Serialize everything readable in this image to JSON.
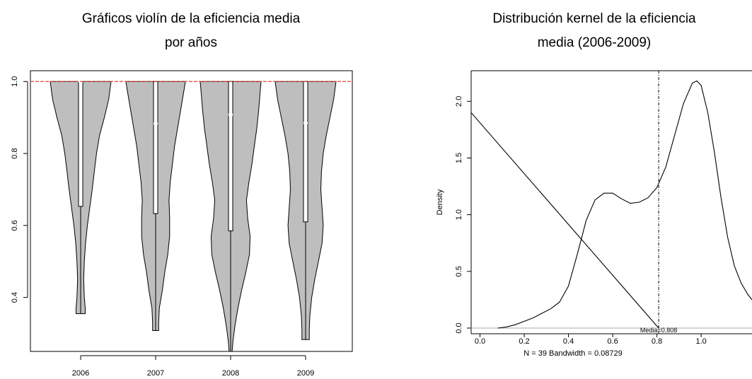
{
  "chart_data": [
    {
      "type": "violin",
      "title_line1": "Gráficos violín de la eficiencia media",
      "title_line2": "por años",
      "categories": [
        "2006",
        "2007",
        "2008",
        "2009"
      ],
      "ylim": [
        0.25,
        1.03
      ],
      "yticks": [
        "0.4",
        "0.6",
        "0.8",
        "1.0"
      ],
      "reference_line": 1.0,
      "colors": {
        "violin": "#bebebe",
        "reference": "#e0403a",
        "box": "#ffffff"
      },
      "violins": [
        {
          "name": "2006",
          "min": 0.355,
          "q1": 0.653,
          "median": 1.0,
          "q3": 1.0,
          "max": 1.0,
          "profile": [
            [
              0.355,
              0.15
            ],
            [
              0.37,
              0.15
            ],
            [
              0.4,
              0.12
            ],
            [
              0.45,
              0.1
            ],
            [
              0.5,
              0.12
            ],
            [
              0.55,
              0.16
            ],
            [
              0.6,
              0.22
            ],
            [
              0.65,
              0.3
            ],
            [
              0.7,
              0.38
            ],
            [
              0.75,
              0.45
            ],
            [
              0.8,
              0.52
            ],
            [
              0.85,
              0.62
            ],
            [
              0.9,
              0.78
            ],
            [
              0.95,
              0.92
            ],
            [
              1.0,
              1.0
            ]
          ]
        },
        {
          "name": "2007",
          "min": 0.308,
          "q1": 0.633,
          "median": 0.883,
          "q3": 1.0,
          "max": 1.0,
          "profile": [
            [
              0.308,
              0.1
            ],
            [
              0.33,
              0.1
            ],
            [
              0.37,
              0.12
            ],
            [
              0.42,
              0.22
            ],
            [
              0.47,
              0.3
            ],
            [
              0.52,
              0.4
            ],
            [
              0.57,
              0.46
            ],
            [
              0.62,
              0.46
            ],
            [
              0.67,
              0.44
            ],
            [
              0.72,
              0.48
            ],
            [
              0.77,
              0.55
            ],
            [
              0.82,
              0.62
            ],
            [
              0.87,
              0.72
            ],
            [
              0.92,
              0.82
            ],
            [
              0.97,
              0.92
            ],
            [
              1.0,
              0.98
            ]
          ]
        },
        {
          "name": "2008",
          "min": 0.25,
          "q1": 0.585,
          "median": 0.908,
          "q3": 1.0,
          "max": 1.0,
          "profile": [
            [
              0.25,
              0.05
            ],
            [
              0.28,
              0.08
            ],
            [
              0.32,
              0.14
            ],
            [
              0.37,
              0.24
            ],
            [
              0.42,
              0.36
            ],
            [
              0.47,
              0.5
            ],
            [
              0.52,
              0.62
            ],
            [
              0.57,
              0.64
            ],
            [
              0.62,
              0.56
            ],
            [
              0.67,
              0.52
            ],
            [
              0.72,
              0.6
            ],
            [
              0.77,
              0.7
            ],
            [
              0.82,
              0.78
            ],
            [
              0.87,
              0.86
            ],
            [
              0.92,
              0.92
            ],
            [
              0.97,
              0.97
            ],
            [
              1.0,
              1.0
            ]
          ]
        },
        {
          "name": "2009",
          "min": 0.283,
          "q1": 0.61,
          "median": 0.885,
          "q3": 1.0,
          "max": 1.0,
          "profile": [
            [
              0.283,
              0.12
            ],
            [
              0.31,
              0.12
            ],
            [
              0.35,
              0.14
            ],
            [
              0.4,
              0.2
            ],
            [
              0.45,
              0.3
            ],
            [
              0.5,
              0.42
            ],
            [
              0.55,
              0.54
            ],
            [
              0.6,
              0.58
            ],
            [
              0.65,
              0.54
            ],
            [
              0.7,
              0.5
            ],
            [
              0.75,
              0.52
            ],
            [
              0.8,
              0.58
            ],
            [
              0.85,
              0.68
            ],
            [
              0.9,
              0.8
            ],
            [
              0.95,
              0.92
            ],
            [
              1.0,
              1.0
            ]
          ]
        }
      ]
    },
    {
      "type": "line",
      "title_line1": "Distribución kernel de la eficiencia",
      "title_line2": "media (2006-2009)",
      "ylabel": "Density",
      "xticks": [
        "0.0",
        "0.2",
        "0.4",
        "0.6",
        "0.8",
        "1.0"
      ],
      "yticks": [
        "0.0",
        "0.5",
        "1.0",
        "1.5",
        "2.0"
      ],
      "xlim": [
        -0.04,
        1.23
      ],
      "ylim": [
        -0.05,
        2.27
      ],
      "subtitle": "N = 39   Bandwidth = 0.08729",
      "mean_label": "Media=0.808",
      "mean": 0.808,
      "colors": {
        "curve": "#000000",
        "zero_line": "#aaaaaa",
        "mean_line": "#000000"
      },
      "series": [
        {
          "x": [
            0.08,
            0.12,
            0.16,
            0.2,
            0.24,
            0.28,
            0.32,
            0.36,
            0.4,
            0.44,
            0.48,
            0.52,
            0.56,
            0.6,
            0.64,
            0.68,
            0.72,
            0.76,
            0.8,
            0.84,
            0.88,
            0.92,
            0.96,
            0.98,
            1.0,
            1.03,
            1.06,
            1.09,
            1.12,
            1.15,
            1.18,
            1.21,
            1.23
          ],
          "y": [
            0.0,
            0.01,
            0.03,
            0.06,
            0.09,
            0.13,
            0.17,
            0.23,
            0.37,
            0.65,
            0.95,
            1.13,
            1.19,
            1.19,
            1.14,
            1.1,
            1.11,
            1.15,
            1.24,
            1.42,
            1.7,
            1.98,
            2.16,
            2.18,
            2.14,
            1.9,
            1.55,
            1.15,
            0.8,
            0.55,
            0.4,
            0.3,
            0.25
          ]
        },
        {
          "x": [
            -0.04,
            0.808
          ],
          "y": [
            1.9,
            0.0
          ]
        }
      ]
    }
  ]
}
